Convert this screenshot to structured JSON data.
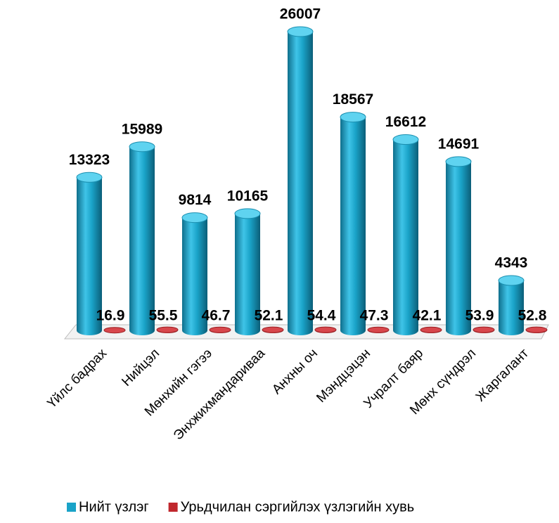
{
  "chart_data": {
    "type": "bar",
    "categories": [
      "Үйлс бадрах",
      "Нийцэл",
      "Мөнхийн гэгээ",
      "Энхжихмандариваа",
      "Анхны оч",
      "Мэндцэцэн",
      "Учралт баяр",
      "Мөнх сүндрэл",
      "Жаргалант"
    ],
    "series": [
      {
        "name": "Нийт үзлэг",
        "color": "#1aa3c8",
        "values": [
          13323,
          15989,
          9814,
          10165,
          26007,
          18567,
          16612,
          14691,
          4343
        ]
      },
      {
        "name": "Урьдчилан сэргийлэх үзлэгийн хувь",
        "color": "#c0272d",
        "values": [
          16.9,
          55.5,
          46.7,
          52.1,
          54.4,
          47.3,
          42.1,
          53.9,
          52.8
        ]
      }
    ],
    "legend": "bottom"
  }
}
